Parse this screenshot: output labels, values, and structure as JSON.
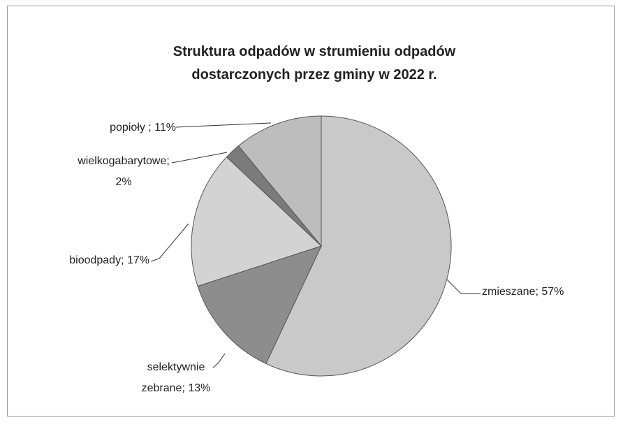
{
  "chart_data": {
    "type": "pie",
    "title": "Struktura odpadów w strumieniu odpadów dostarczonych przez gminy  w 2022 r.",
    "values": [
      57,
      13,
      17,
      2,
      11
    ],
    "value_labels": [
      "zmieszane; 57%",
      "selektywnie zebrane; 13%",
      "bioodpady; 17%",
      "wielkogabarytowe; 2%",
      "popioły ; 11%"
    ],
    "colors": [
      "#c9c9c9",
      "#8d8d8d",
      "#d3d3d3",
      "#7b7b7b",
      "#bdbdbd"
    ]
  }
}
